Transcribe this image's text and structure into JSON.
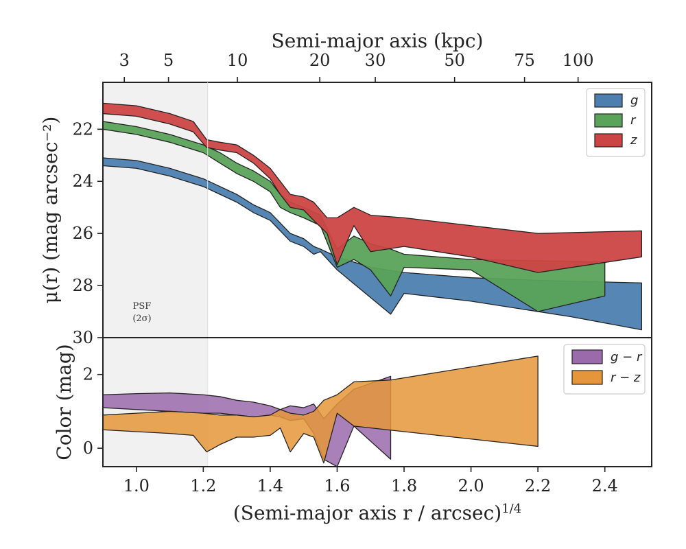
{
  "chart_data": [
    {
      "type": "area",
      "panel": "surface-brightness",
      "top_axis": {
        "label": "Semi-major axis (kpc)",
        "ticks": [
          {
            "label": "3",
            "x": 0.964
          },
          {
            "label": "5",
            "x": 1.096
          },
          {
            "label": "10",
            "x": 1.302
          },
          {
            "label": "20",
            "x": 1.548
          },
          {
            "label": "30",
            "x": 1.714
          },
          {
            "label": "50",
            "x": 1.951
          },
          {
            "label": "75",
            "x": 2.16
          },
          {
            "label": "100",
            "x": 2.32
          }
        ]
      },
      "ylabel": "μ(r) (mag arcsec⁻²)",
      "ylim": [
        30,
        20.2
      ],
      "xlim": [
        0.9,
        2.54
      ],
      "yticks": [
        "22",
        "24",
        "26",
        "28",
        "30"
      ],
      "psf_label": [
        "PSF",
        "(2σ)"
      ],
      "psf_region": [
        0.9,
        1.213
      ],
      "legend_position": "top-right",
      "series": [
        {
          "name": "g",
          "color": "#4c7fb0",
          "upper": [
            [
              0.9,
              23.1
            ],
            [
              1.0,
              23.2
            ],
            [
              1.1,
              23.5
            ],
            [
              1.2,
              23.9
            ],
            [
              1.25,
              24.2
            ],
            [
              1.3,
              24.5
            ],
            [
              1.35,
              24.9
            ],
            [
              1.4,
              25.2
            ],
            [
              1.43,
              25.6
            ],
            [
              1.46,
              26.0
            ],
            [
              1.5,
              26.2
            ],
            [
              1.53,
              26.5
            ],
            [
              1.55,
              26.6
            ],
            [
              1.6,
              26.9
            ],
            [
              1.7,
              27.3
            ],
            [
              1.8,
              27.5
            ],
            [
              2.0,
              27.7
            ],
            [
              2.2,
              27.8
            ],
            [
              2.51,
              27.9
            ]
          ],
          "lower": [
            [
              0.9,
              23.4
            ],
            [
              1.0,
              23.5
            ],
            [
              1.1,
              23.8
            ],
            [
              1.2,
              24.2
            ],
            [
              1.25,
              24.5
            ],
            [
              1.3,
              24.8
            ],
            [
              1.35,
              25.2
            ],
            [
              1.4,
              25.5
            ],
            [
              1.43,
              25.9
            ],
            [
              1.46,
              26.3
            ],
            [
              1.5,
              26.5
            ],
            [
              1.53,
              26.8
            ],
            [
              1.55,
              26.7
            ],
            [
              1.6,
              27.4
            ],
            [
              1.76,
              29.1
            ],
            [
              1.8,
              28.3
            ],
            [
              2.0,
              28.6
            ],
            [
              2.3,
              29.2
            ],
            [
              2.51,
              29.7
            ]
          ]
        },
        {
          "name": "r",
          "color": "#5aa35a",
          "upper": [
            [
              0.9,
              21.7
            ],
            [
              1.0,
              21.9
            ],
            [
              1.1,
              22.2
            ],
            [
              1.2,
              22.6
            ],
            [
              1.25,
              22.9
            ],
            [
              1.3,
              23.3
            ],
            [
              1.35,
              23.6
            ],
            [
              1.4,
              24.0
            ],
            [
              1.43,
              24.5
            ],
            [
              1.46,
              24.8
            ],
            [
              1.5,
              25.0
            ],
            [
              1.55,
              25.3
            ],
            [
              1.6,
              26.6
            ],
            [
              1.65,
              26.1
            ],
            [
              1.7,
              26.4
            ],
            [
              1.76,
              26.6
            ],
            [
              1.8,
              26.8
            ],
            [
              2.0,
              27.0
            ],
            [
              2.2,
              27.05
            ],
            [
              2.4,
              27.1
            ]
          ],
          "lower": [
            [
              0.9,
              22.0
            ],
            [
              1.0,
              22.2
            ],
            [
              1.1,
              22.5
            ],
            [
              1.2,
              22.9
            ],
            [
              1.25,
              23.3
            ],
            [
              1.3,
              23.7
            ],
            [
              1.35,
              24.0
            ],
            [
              1.4,
              24.4
            ],
            [
              1.43,
              25.0
            ],
            [
              1.46,
              25.2
            ],
            [
              1.5,
              25.4
            ],
            [
              1.55,
              25.7
            ],
            [
              1.6,
              27.3
            ],
            [
              1.65,
              27.0
            ],
            [
              1.7,
              27.4
            ],
            [
              1.76,
              28.4
            ],
            [
              1.8,
              27.3
            ],
            [
              2.0,
              27.4
            ],
            [
              2.2,
              29.0
            ],
            [
              2.4,
              28.4
            ]
          ]
        },
        {
          "name": "z",
          "color": "#cc4444",
          "upper": [
            [
              0.9,
              21.0
            ],
            [
              1.0,
              21.1
            ],
            [
              1.1,
              21.4
            ],
            [
              1.17,
              21.7
            ],
            [
              1.21,
              22.4
            ],
            [
              1.25,
              22.5
            ],
            [
              1.3,
              22.6
            ],
            [
              1.35,
              23.0
            ],
            [
              1.4,
              23.5
            ],
            [
              1.43,
              24.0
            ],
            [
              1.46,
              24.5
            ],
            [
              1.5,
              24.6
            ],
            [
              1.53,
              24.8
            ],
            [
              1.57,
              25.4
            ],
            [
              1.6,
              25.4
            ],
            [
              1.65,
              25.0
            ],
            [
              1.7,
              25.3
            ],
            [
              1.8,
              25.4
            ],
            [
              2.0,
              25.7
            ],
            [
              2.2,
              26.0
            ],
            [
              2.51,
              25.9
            ]
          ],
          "lower": [
            [
              0.9,
              21.4
            ],
            [
              1.0,
              21.5
            ],
            [
              1.1,
              21.8
            ],
            [
              1.17,
              22.1
            ],
            [
              1.21,
              22.7
            ],
            [
              1.25,
              22.8
            ],
            [
              1.3,
              22.9
            ],
            [
              1.35,
              23.3
            ],
            [
              1.4,
              23.9
            ],
            [
              1.43,
              24.5
            ],
            [
              1.46,
              25.0
            ],
            [
              1.5,
              25.1
            ],
            [
              1.53,
              25.5
            ],
            [
              1.57,
              26.0
            ],
            [
              1.6,
              27.2
            ],
            [
              1.65,
              25.7
            ],
            [
              1.7,
              26.7
            ],
            [
              1.8,
              26.5
            ],
            [
              2.0,
              26.9
            ],
            [
              2.2,
              27.5
            ],
            [
              2.51,
              26.9
            ]
          ]
        }
      ]
    },
    {
      "type": "area",
      "panel": "color",
      "ylabel": "Color (mag)",
      "xlabel": "(Semi-major axis r / arcsec)",
      "xlabel_sup": "1/4",
      "xlim": [
        0.9,
        2.54
      ],
      "ylim": [
        -0.5,
        3.0
      ],
      "xticks": [
        "1.0",
        "1.2",
        "1.4",
        "1.6",
        "1.8",
        "2.0",
        "2.2",
        "2.4"
      ],
      "yticks": [
        "0",
        "2"
      ],
      "legend_position": "top-right",
      "series": [
        {
          "name": "g − r",
          "color": "#9b6aab",
          "upper": [
            [
              0.9,
              1.45
            ],
            [
              1.0,
              1.48
            ],
            [
              1.1,
              1.5
            ],
            [
              1.2,
              1.45
            ],
            [
              1.25,
              1.4
            ],
            [
              1.3,
              1.3
            ],
            [
              1.35,
              1.25
            ],
            [
              1.4,
              1.15
            ],
            [
              1.43,
              1.05
            ],
            [
              1.46,
              1.15
            ],
            [
              1.5,
              1.1
            ],
            [
              1.53,
              1.2
            ],
            [
              1.56,
              0.8
            ],
            [
              1.6,
              1.2
            ],
            [
              1.65,
              1.6
            ],
            [
              1.76,
              1.95
            ]
          ],
          "lower": [
            [
              0.9,
              1.1
            ],
            [
              1.0,
              1.05
            ],
            [
              1.1,
              1.0
            ],
            [
              1.2,
              0.95
            ],
            [
              1.25,
              0.95
            ],
            [
              1.3,
              0.9
            ],
            [
              1.35,
              0.85
            ],
            [
              1.4,
              0.9
            ],
            [
              1.43,
              0.85
            ],
            [
              1.46,
              0.75
            ],
            [
              1.5,
              0.8
            ],
            [
              1.53,
              0.4
            ],
            [
              1.56,
              -0.3
            ],
            [
              1.6,
              -0.5
            ],
            [
              1.65,
              0.6
            ],
            [
              1.76,
              -0.3
            ]
          ]
        },
        {
          "name": "r − z",
          "color": "#e5963a",
          "upper": [
            [
              0.9,
              0.9
            ],
            [
              1.0,
              0.95
            ],
            [
              1.1,
              1.0
            ],
            [
              1.2,
              0.95
            ],
            [
              1.25,
              0.9
            ],
            [
              1.3,
              0.9
            ],
            [
              1.35,
              0.85
            ],
            [
              1.4,
              0.9
            ],
            [
              1.43,
              1.05
            ],
            [
              1.46,
              0.95
            ],
            [
              1.5,
              0.9
            ],
            [
              1.53,
              1.0
            ],
            [
              1.56,
              1.3
            ],
            [
              1.6,
              1.45
            ],
            [
              1.65,
              1.8
            ],
            [
              1.76,
              1.85
            ],
            [
              2.2,
              2.5
            ]
          ],
          "lower": [
            [
              0.9,
              0.5
            ],
            [
              1.0,
              0.45
            ],
            [
              1.1,
              0.4
            ],
            [
              1.17,
              0.35
            ],
            [
              1.21,
              -0.1
            ],
            [
              1.25,
              0.1
            ],
            [
              1.3,
              0.3
            ],
            [
              1.35,
              0.3
            ],
            [
              1.4,
              0.35
            ],
            [
              1.43,
              0.55
            ],
            [
              1.46,
              -0.1
            ],
            [
              1.5,
              0.4
            ],
            [
              1.53,
              0.3
            ],
            [
              1.56,
              -0.4
            ],
            [
              1.6,
              0.95
            ],
            [
              1.65,
              0.6
            ],
            [
              2.2,
              0.05
            ]
          ]
        }
      ]
    }
  ]
}
